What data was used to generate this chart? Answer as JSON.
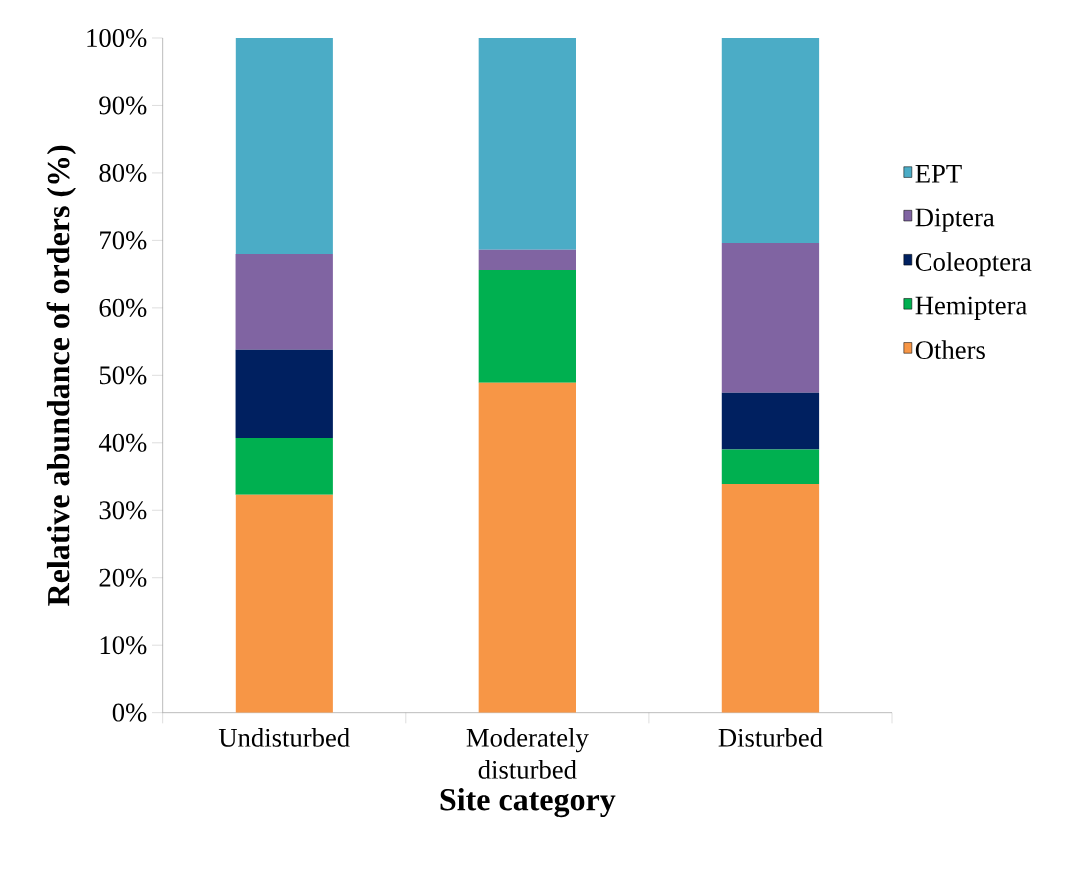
{
  "chart_data": {
    "type": "bar",
    "stacked": true,
    "xlabel": "Site category",
    "ylabel": "Relative abundance of orders (%)",
    "categories": [
      "Undisturbed",
      "Moderately disturbed",
      "Disturbed"
    ],
    "series": [
      {
        "name": "Others",
        "color": "#f79646",
        "values": [
          32.3,
          48.9,
          33.9
        ]
      },
      {
        "name": "Hemiptera",
        "color": "#00b050",
        "values": [
          8.4,
          16.7,
          5.1
        ]
      },
      {
        "name": "Coleoptera",
        "color": "#002060",
        "values": [
          13.1,
          0,
          8.4
        ]
      },
      {
        "name": "Diptera",
        "color": "#8064a2",
        "values": [
          14.2,
          3.0,
          22.2
        ]
      },
      {
        "name": "EPT",
        "color": "#4bacc6",
        "values": [
          32.0,
          31.4,
          30.4
        ]
      }
    ],
    "ylim": [
      0,
      100
    ],
    "yticks": [
      {
        "value": 0,
        "label": "0%"
      },
      {
        "value": 10,
        "label": "10%"
      },
      {
        "value": 20,
        "label": "20%"
      },
      {
        "value": 30,
        "label": "30%"
      },
      {
        "value": 40,
        "label": "40%"
      },
      {
        "value": 50,
        "label": "50%"
      },
      {
        "value": 60,
        "label": "60%"
      },
      {
        "value": 70,
        "label": "70%"
      },
      {
        "value": 80,
        "label": "80%"
      },
      {
        "value": 90,
        "label": "90%"
      },
      {
        "value": 100,
        "label": "100%"
      }
    ],
    "legend": "right"
  }
}
